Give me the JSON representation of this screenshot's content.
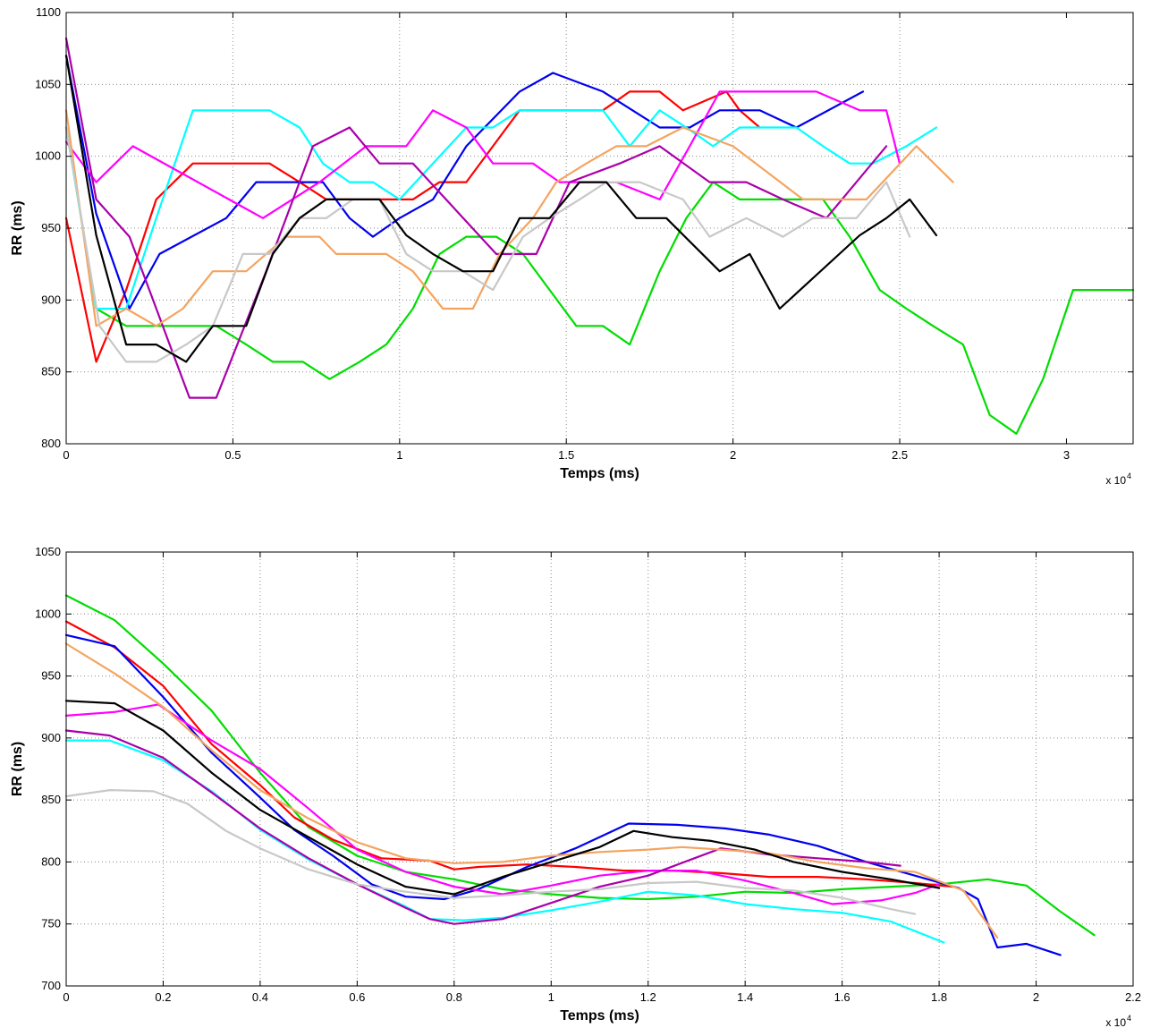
{
  "chart_data": [
    {
      "type": "line",
      "xlabel": "Temps (ms)",
      "ylabel": "RR (ms)",
      "x_multiplier": "x 10",
      "x_exponent": "4",
      "xlim": [
        0,
        32000
      ],
      "ylim": [
        800,
        1100
      ],
      "xticks": [
        0,
        5000,
        10000,
        15000,
        20000,
        25000,
        30000
      ],
      "xtick_labels": [
        "0",
        "0.5",
        "1",
        "1.5",
        "2",
        "2.5",
        "3"
      ],
      "yticks": [
        800,
        850,
        900,
        950,
        1000,
        1050,
        1100
      ],
      "ytick_labels": [
        "800",
        "850",
        "900",
        "950",
        "1000",
        "1050",
        "1100"
      ],
      "grid": true,
      "series": [
        {
          "color": "#00dd00",
          "x": [
            0,
            900,
            1800,
            2700,
            3600,
            4500,
            5400,
            6200,
            7100,
            7900,
            8800,
            9600,
            10400,
            11200,
            12000,
            12900,
            13700,
            14500,
            15300,
            16100,
            16900,
            17800,
            18600,
            19400,
            20200,
            21100,
            21900,
            22700,
            23500,
            24400,
            25200,
            26000,
            26900,
            27700,
            28500,
            29300,
            30200,
            31000,
            32000
          ],
          "y": [
            1020,
            894,
            882,
            882,
            882,
            882,
            869,
            857,
            857,
            845,
            857,
            869,
            894,
            932,
            944,
            944,
            932,
            907,
            882,
            882,
            869,
            920,
            957,
            982,
            970,
            970,
            970,
            970,
            944,
            907,
            894,
            882,
            869,
            820,
            807,
            845,
            907,
            907,
            907
          ]
        },
        {
          "color": "#ff0000",
          "x": [
            0,
            900,
            1800,
            2700,
            3800,
            5400,
            6100,
            7000,
            7800,
            8700,
            9600,
            10400,
            11200,
            12000,
            12800,
            13600,
            14600,
            16100,
            16900,
            17800,
            18500,
            19800,
            20200,
            20800
          ],
          "y": [
            957,
            857,
            907,
            970,
            995,
            995,
            995,
            982,
            970,
            970,
            970,
            970,
            982,
            982,
            1007,
            1032,
            1032,
            1032,
            1045,
            1045,
            1032,
            1045,
            1032,
            1020
          ]
        },
        {
          "color": "#0000ee",
          "x": [
            0,
            900,
            1900,
            2800,
            4800,
            5700,
            7700,
            8500,
            9200,
            10000,
            11000,
            12000,
            13600,
            14600,
            16100,
            17800,
            18700,
            19600,
            20800,
            21900,
            23900
          ],
          "y": [
            1070,
            960,
            894,
            932,
            957,
            982,
            982,
            957,
            944,
            957,
            970,
            1007,
            1045,
            1058,
            1045,
            1020,
            1020,
            1032,
            1032,
            1020,
            1045
          ]
        },
        {
          "color": "#00ffff",
          "x": [
            0,
            900,
            1800,
            2700,
            3800,
            5400,
            6100,
            7000,
            7700,
            8500,
            9200,
            10000,
            11000,
            12000,
            12800,
            13600,
            14500,
            16100,
            16900,
            17800,
            18600,
            19400,
            20200,
            21100,
            21900,
            22700,
            23500,
            24200,
            25200,
            26100
          ],
          "y": [
            1020,
            894,
            894,
            957,
            1032,
            1032,
            1032,
            1020,
            995,
            982,
            982,
            970,
            995,
            1020,
            1020,
            1032,
            1032,
            1032,
            1007,
            1032,
            1020,
            1007,
            1020,
            1020,
            1020,
            1007,
            995,
            995,
            1007,
            1020
          ]
        },
        {
          "color": "#ff00ff",
          "x": [
            0,
            900,
            2000,
            5900,
            7600,
            9000,
            10200,
            11000,
            12000,
            12800,
            14000,
            14800,
            16500,
            17800,
            18700,
            19600,
            20300,
            22500,
            23800,
            24600,
            25000
          ],
          "y": [
            1010,
            982,
            1007,
            957,
            982,
            1007,
            1007,
            1032,
            1020,
            995,
            995,
            982,
            982,
            970,
            1007,
            1045,
            1045,
            1045,
            1032,
            1032,
            995
          ]
        },
        {
          "color": "#aa00aa",
          "x": [
            0,
            900,
            1900,
            3700,
            4500,
            6000,
            7400,
            8500,
            9400,
            10400,
            12900,
            14100,
            15100,
            16600,
            17800,
            19300,
            20400,
            21500,
            22800,
            24600
          ],
          "y": [
            1082,
            970,
            944,
            832,
            832,
            920,
            1007,
            1020,
            995,
            995,
            932,
            932,
            982,
            995,
            1007,
            982,
            982,
            970,
            957,
            1007
          ]
        },
        {
          "color": "#f4a460",
          "x": [
            0,
            900,
            1800,
            2700,
            3500,
            4400,
            5400,
            6600,
            7600,
            8100,
            8600,
            9600,
            10400,
            11300,
            12200,
            13000,
            14000,
            14700,
            15600,
            16500,
            17400,
            18500,
            20000,
            22100,
            24000,
            25500,
            26600
          ],
          "y": [
            1032,
            882,
            894,
            882,
            894,
            920,
            920,
            944,
            944,
            932,
            932,
            932,
            920,
            894,
            894,
            932,
            957,
            982,
            995,
            1007,
            1007,
            1020,
            1007,
            970,
            970,
            1007,
            982
          ]
        },
        {
          "color": "#c8c8c8",
          "x": [
            0,
            1000,
            1800,
            2700,
            3600,
            4400,
            5300,
            6100,
            7000,
            7800,
            8600,
            9400,
            10200,
            11000,
            11900,
            12800,
            13700,
            14500,
            15400,
            16200,
            17200,
            18500,
            19300,
            20400,
            21500,
            22400,
            23700,
            24600,
            25300
          ],
          "y": [
            1020,
            882,
            857,
            857,
            869,
            882,
            932,
            932,
            957,
            957,
            970,
            970,
            932,
            920,
            920,
            907,
            944,
            957,
            970,
            982,
            982,
            970,
            944,
            957,
            944,
            957,
            957,
            982,
            944
          ]
        },
        {
          "color": "#000000",
          "x": [
            0,
            900,
            1800,
            2700,
            3600,
            4400,
            5400,
            6200,
            7000,
            7800,
            8700,
            9400,
            10200,
            11000,
            11900,
            12800,
            13600,
            14500,
            15400,
            16200,
            17100,
            18000,
            19600,
            20500,
            21400,
            23800,
            24600,
            25300,
            26100
          ],
          "y": [
            1070,
            945,
            869,
            869,
            857,
            882,
            882,
            932,
            957,
            970,
            970,
            970,
            945,
            932,
            920,
            920,
            957,
            957,
            982,
            982,
            957,
            957,
            920,
            932,
            894,
            945,
            957,
            970,
            945
          ]
        }
      ]
    },
    {
      "type": "line",
      "xlabel": "Temps (ms)",
      "ylabel": "RR (ms)",
      "x_multiplier": "x 10",
      "x_exponent": "4",
      "xlim": [
        0,
        22000
      ],
      "ylim": [
        700,
        1050
      ],
      "xticks": [
        0,
        2000,
        4000,
        6000,
        8000,
        10000,
        12000,
        14000,
        16000,
        18000,
        20000,
        22000
      ],
      "xtick_labels": [
        "0",
        "0.2",
        "0.4",
        "0.6",
        "0.8",
        "1",
        "1.2",
        "1.4",
        "1.6",
        "1.8",
        "2",
        "2.2"
      ],
      "yticks": [
        700,
        750,
        800,
        850,
        900,
        950,
        1000,
        1050
      ],
      "ytick_labels": [
        "700",
        "750",
        "800",
        "850",
        "900",
        "950",
        "1000",
        "1050"
      ],
      "grid": true,
      "series": [
        {
          "color": "#00dd00",
          "x": [
            0,
            1000,
            2000,
            3000,
            4000,
            5000,
            6000,
            7000,
            8000,
            9000,
            10000,
            11000,
            12000,
            13000,
            14000,
            15000,
            16000,
            17000,
            18000,
            19000,
            19800,
            20500,
            21200
          ],
          "y": [
            1015,
            995,
            960,
            922,
            872,
            828,
            805,
            792,
            786,
            778,
            774,
            771,
            770,
            772,
            776,
            775,
            778,
            780,
            782,
            786,
            781,
            760,
            741
          ]
        },
        {
          "color": "#ff0000",
          "x": [
            0,
            1000,
            2000,
            3000,
            4000,
            4700,
            5500,
            6500,
            7500,
            8000,
            8500,
            9500,
            10500,
            11500,
            12500,
            13500,
            14500,
            15500,
            16500,
            17500,
            18300
          ],
          "y": [
            994,
            973,
            942,
            895,
            862,
            836,
            818,
            803,
            801,
            794,
            796,
            798,
            796,
            793,
            793,
            791,
            788,
            788,
            786,
            783,
            780
          ]
        },
        {
          "color": "#0000ee",
          "x": [
            0,
            1000,
            2000,
            3000,
            4000,
            4700,
            5500,
            6300,
            7000,
            7800,
            8500,
            9500,
            10500,
            11600,
            12600,
            13600,
            14500,
            15500,
            16500,
            17500,
            18400,
            18800,
            19200,
            19800,
            20500
          ],
          "y": [
            983,
            974,
            933,
            888,
            852,
            826,
            805,
            782,
            772,
            770,
            778,
            796,
            811,
            831,
            830,
            827,
            822,
            813,
            800,
            789,
            779,
            770,
            731,
            734,
            725
          ]
        },
        {
          "color": "#00ffff",
          "x": [
            0,
            900,
            2000,
            3000,
            4000,
            5000,
            6000,
            7000,
            7500,
            8200,
            9000,
            10000,
            11000,
            12000,
            13000,
            14000,
            15000,
            16000,
            17000,
            18100
          ],
          "y": [
            898,
            898,
            882,
            857,
            826,
            802,
            782,
            764,
            754,
            753,
            755,
            761,
            768,
            776,
            773,
            766,
            762,
            759,
            752,
            735
          ]
        },
        {
          "color": "#ff00ff",
          "x": [
            0,
            1000,
            1900,
            3000,
            4000,
            5000,
            6000,
            7000,
            8000,
            9000,
            10000,
            11000,
            12000,
            13000,
            14000,
            15000,
            15800,
            16800,
            17500,
            18000
          ],
          "y": [
            918,
            921,
            927,
            898,
            875,
            843,
            810,
            792,
            780,
            774,
            781,
            789,
            793,
            793,
            785,
            775,
            766,
            769,
            775,
            782
          ]
        },
        {
          "color": "#aa00aa",
          "x": [
            0,
            900,
            2000,
            3000,
            4000,
            5000,
            6000,
            7000,
            7500,
            8000,
            9000,
            10000,
            11000,
            12000,
            13500,
            14500,
            15500,
            16500,
            17200
          ],
          "y": [
            906,
            902,
            884,
            856,
            827,
            803,
            782,
            763,
            754,
            750,
            754,
            767,
            780,
            789,
            811,
            806,
            803,
            800,
            797
          ]
        },
        {
          "color": "#f4a460",
          "x": [
            0,
            1000,
            2000,
            3000,
            4000,
            5000,
            6000,
            7000,
            8000,
            9000,
            10000,
            11000,
            12000,
            12700,
            13500,
            14500,
            15500,
            16500,
            17500,
            18500,
            19200
          ],
          "y": [
            976,
            952,
            925,
            890,
            858,
            835,
            816,
            803,
            799,
            800,
            805,
            808,
            810,
            812,
            810,
            807,
            800,
            795,
            792,
            777,
            739
          ]
        },
        {
          "color": "#c8c8c8",
          "x": [
            0,
            900,
            1800,
            2500,
            3300,
            4000,
            5000,
            6000,
            7000,
            8000,
            9000,
            10000,
            11000,
            12000,
            13000,
            14000,
            15000,
            16000,
            17000,
            17500
          ],
          "y": [
            853,
            858,
            857,
            847,
            825,
            811,
            794,
            782,
            776,
            771,
            773,
            776,
            778,
            783,
            784,
            779,
            777,
            771,
            762,
            758
          ]
        },
        {
          "color": "#000000",
          "x": [
            0,
            1000,
            2000,
            3000,
            4000,
            5000,
            6000,
            7000,
            8000,
            9000,
            10000,
            11000,
            11700,
            12500,
            13300,
            14200,
            15000,
            16000,
            17000,
            18000
          ],
          "y": [
            930,
            928,
            906,
            872,
            842,
            820,
            798,
            780,
            774,
            788,
            800,
            812,
            825,
            820,
            817,
            810,
            800,
            792,
            786,
            779
          ]
        }
      ]
    }
  ]
}
